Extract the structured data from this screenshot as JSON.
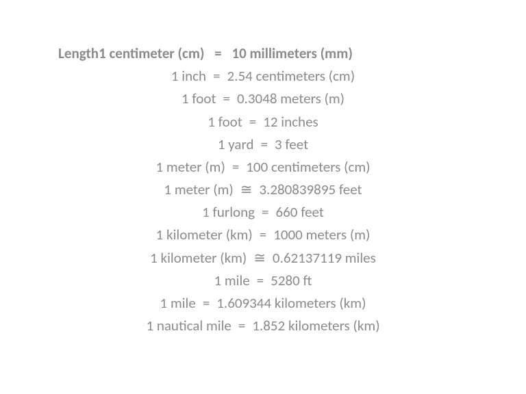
{
  "text_color": "#8a8a8a",
  "background_color": "#ffffff",
  "font_family": "Calibri, Arial, sans-serif",
  "fontsize": 21,
  "line_height": 1.58,
  "header": {
    "left": "Length1 centimeter (cm)",
    "op": "=",
    "right": "10 millimeters (mm)",
    "bold": true
  },
  "rows": [
    {
      "left": "1 inch",
      "op": "=",
      "right": "2.54 centimeters (cm)"
    },
    {
      "left": "1 foot",
      "op": "=",
      "right": "0.3048 meters (m)"
    },
    {
      "left": "1 foot",
      "op": "=",
      "right": "12 inches"
    },
    {
      "left": "1 yard",
      "op": "=",
      "right": "3 feet"
    },
    {
      "left": "1 meter (m)",
      "op": "=",
      "right": "100 centimeters (cm)"
    },
    {
      "left": "1 meter (m)",
      "op": "≅",
      "right": "3.280839895 feet"
    },
    {
      "left": "1 furlong",
      "op": "=",
      "right": "660 feet"
    },
    {
      "left": "1 kilometer (km)",
      "op": "=",
      "right": "1000 meters (m)"
    },
    {
      "left": "1 kilometer (km)",
      "op": "≅",
      "right": "0.62137119 miles"
    },
    {
      "left": "1 mile",
      "op": "=",
      "right": "5280 ft"
    },
    {
      "left": "1 mile",
      "op": "=",
      "right": "1.609344 kilometers (km)"
    },
    {
      "left": "1 nautical mile",
      "op": "=",
      "right": "1.852 kilometers (km)"
    }
  ]
}
